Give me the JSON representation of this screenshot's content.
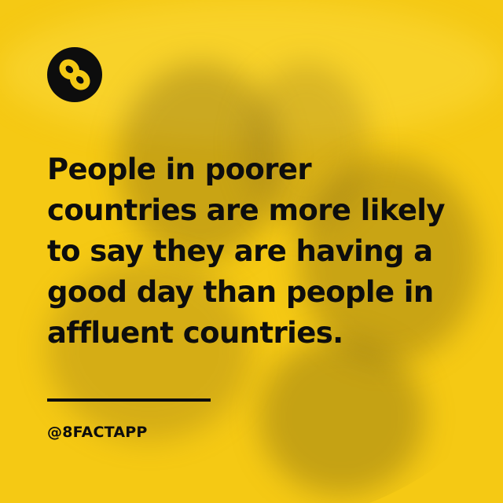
{
  "logo": {
    "icon": "infinity-eight-icon",
    "background_color": "#0d0d0d",
    "glyph_color": "#f5c914"
  },
  "headline": {
    "lines": [
      "People in poorer",
      "countries are more likely",
      "to say they are having a",
      "good day than people in",
      "affluent countries."
    ]
  },
  "handle": "@8FACTAPP",
  "colors": {
    "background": "#f5c914",
    "text": "#0d0d0d"
  }
}
